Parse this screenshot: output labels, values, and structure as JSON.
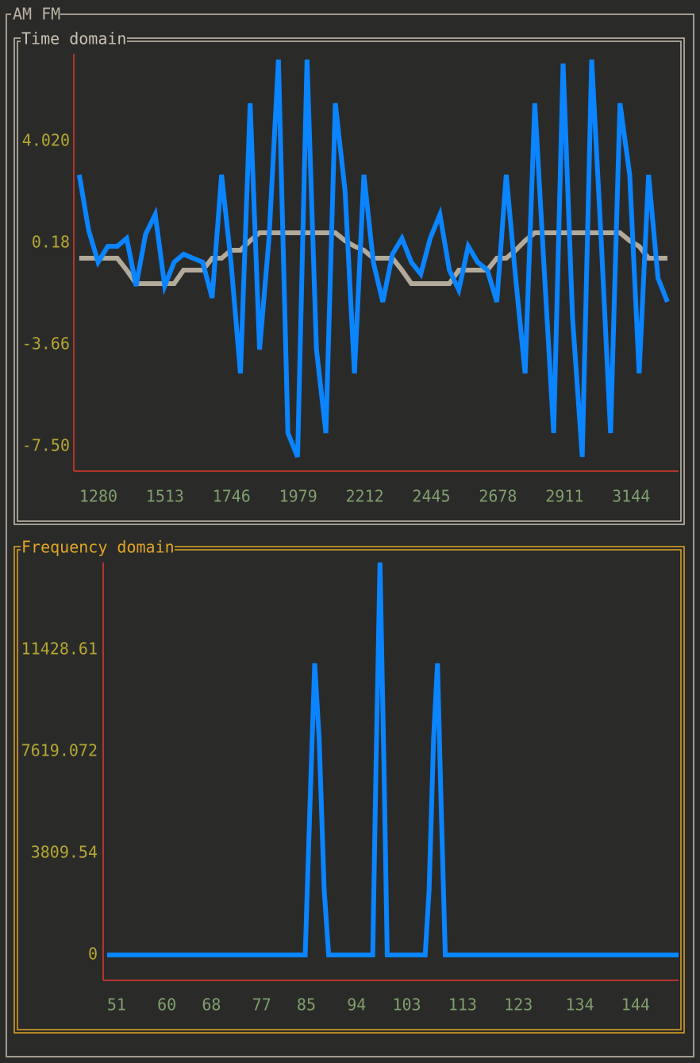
{
  "title": "AM FM",
  "chart_data": [
    {
      "type": "line",
      "title": "Time domain",
      "x": [
        1213,
        1246,
        1279,
        1313,
        1346,
        1379,
        1412,
        1445,
        1479,
        1512,
        1545,
        1578,
        1611,
        1645,
        1678,
        1711,
        1744,
        1777,
        1811,
        1844,
        1877,
        1910,
        1943,
        1977,
        2010,
        2043,
        2076,
        2109,
        2143,
        2176,
        2209,
        2242,
        2275,
        2309,
        2342,
        2375,
        2408,
        2441,
        2475,
        2508,
        2541,
        2574,
        2607,
        2641,
        2674,
        2707,
        2740,
        2773,
        2807,
        2840,
        2873,
        2906,
        2939,
        2973,
        3006,
        3039,
        3072,
        3105,
        3139,
        3172,
        3205,
        3238,
        3271
      ],
      "series": [
        {
          "color": "#b3aa9a",
          "values": [
            -0.39,
            -0.39,
            -0.39,
            -0.39,
            -0.39,
            -0.84,
            -1.35,
            -1.35,
            -1.35,
            -1.35,
            -1.35,
            -0.84,
            -0.84,
            -0.84,
            -0.39,
            -0.39,
            -0.09,
            -0.09,
            0.27,
            0.57,
            0.57,
            0.57,
            0.57,
            0.57,
            0.57,
            0.57,
            0.57,
            0.57,
            0.27,
            0.06,
            -0.09,
            -0.39,
            -0.39,
            -0.39,
            -0.84,
            -1.35,
            -1.35,
            -1.35,
            -1.35,
            -1.35,
            -0.84,
            -0.84,
            -0.84,
            -0.84,
            -0.39,
            -0.39,
            -0.09,
            0.27,
            0.57,
            0.57,
            0.57,
            0.57,
            0.57,
            0.57,
            0.57,
            0.57,
            0.57,
            0.57,
            0.27,
            0.06,
            -0.39,
            -0.39,
            -0.39
          ]
        },
        {
          "color": "#0a84ff",
          "values": [
            2.76,
            0.66,
            -0.54,
            0.06,
            0.06,
            0.36,
            -1.44,
            0.51,
            1.26,
            -1.44,
            -0.54,
            -0.24,
            -0.39,
            -0.54,
            -1.89,
            2.76,
            -0.54,
            -4.74,
            5.46,
            -3.84,
            0.36,
            7.11,
            -6.99,
            -7.89,
            7.11,
            -3.84,
            -6.99,
            5.46,
            2.16,
            -4.74,
            2.76,
            -0.54,
            -2.04,
            -0.24,
            0.36,
            -0.54,
            -0.99,
            0.36,
            1.26,
            -0.84,
            -1.59,
            0.06,
            -0.54,
            -0.84,
            -2.04,
            2.76,
            -1.14,
            -4.74,
            5.46,
            -0.84,
            -6.99,
            6.96,
            -2.64,
            -7.89,
            7.11,
            0.36,
            -6.99,
            5.46,
            2.76,
            -4.74,
            2.76,
            -1.14,
            -2.04
          ]
        }
      ],
      "xlim": [
        1194,
        3310
      ],
      "xticks": [
        1280,
        1513,
        1746,
        1979,
        2212,
        2445,
        2678,
        2911,
        3144
      ],
      "ylim": [
        -8.43,
        7.32
      ],
      "yticks": [
        {
          "value": -7.5,
          "label": "-7.50"
        },
        -3.66,
        0.18,
        {
          "value": 4.02,
          "label": "4.020"
        }
      ]
    },
    {
      "type": "line",
      "title": "Frequency domain",
      "x": [
        49.3,
        84.8,
        85.6,
        86.5,
        87.3,
        88.2,
        89.0,
        96.9,
        97.5,
        98.2,
        98.9,
        99.5,
        106.3,
        107.0,
        107.8,
        108.5,
        109.2,
        109.9,
        151.7
      ],
      "series": [
        {
          "color": "#0a84ff",
          "values": [
            0,
            0,
            5268,
            10923,
            8095,
            2440,
            0,
            0,
            7202,
            14700,
            7202,
            0,
            0,
            2440,
            8095,
            10923,
            5268,
            0,
            0
          ]
        }
      ],
      "xlim": [
        48.6,
        151.7
      ],
      "xticks": [
        51,
        60,
        68,
        77,
        85,
        94,
        103,
        113,
        123,
        134,
        144
      ],
      "ylim": [
        -952,
        14702
      ],
      "yticks": [
        0,
        3809.54,
        7619.072,
        11428.61
      ]
    }
  ]
}
